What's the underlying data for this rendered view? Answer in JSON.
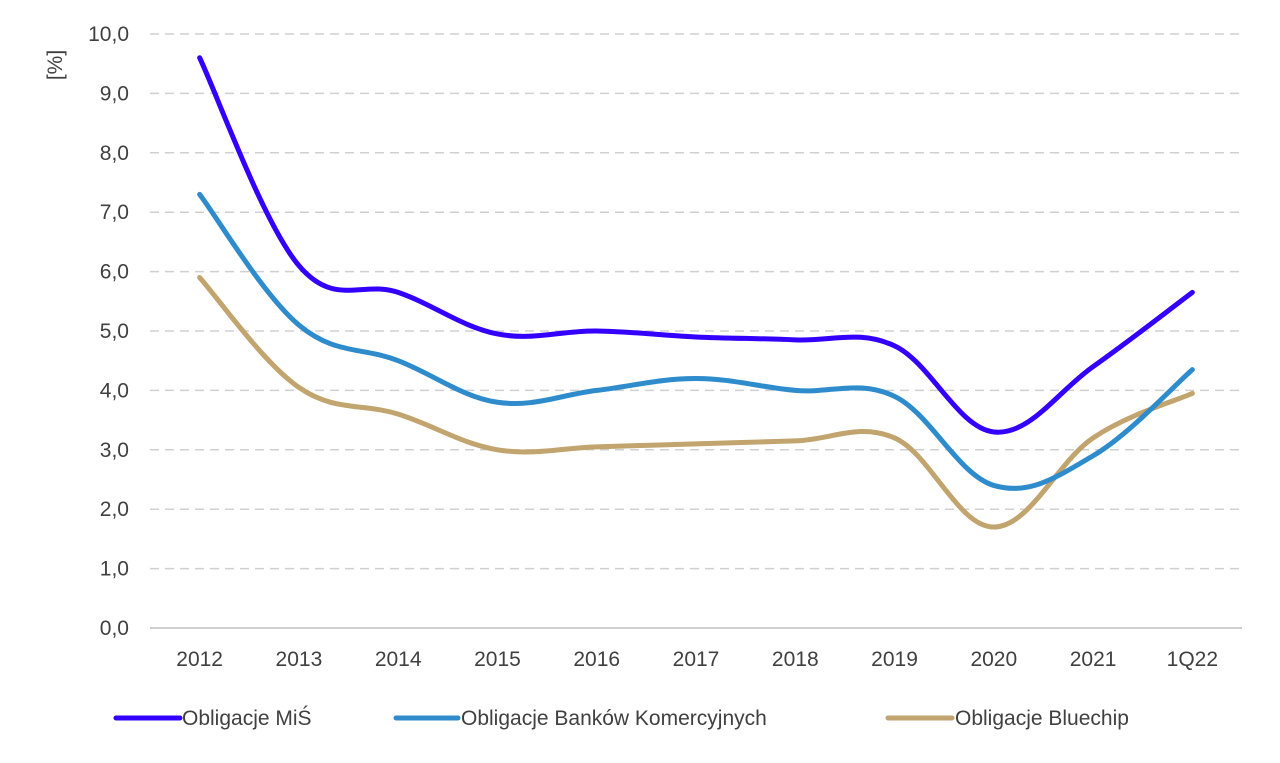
{
  "chart_data": {
    "type": "line",
    "ylabel": "[%]",
    "xlabel": "",
    "title": "",
    "categories": [
      "2012",
      "2013",
      "2014",
      "2015",
      "2016",
      "2017",
      "2018",
      "2019",
      "2020",
      "2021",
      "1Q22"
    ],
    "ylim": [
      0,
      10
    ],
    "yticks": [
      "0,0",
      "1,0",
      "2,0",
      "3,0",
      "4,0",
      "5,0",
      "6,0",
      "7,0",
      "8,0",
      "9,0",
      "10,0"
    ],
    "grid": true,
    "legend_position": "bottom",
    "series": [
      {
        "name": "Obligacje MiŚ",
        "color": "#3300ff",
        "values": [
          9.6,
          6.1,
          5.65,
          4.95,
          5.0,
          4.9,
          4.85,
          4.75,
          3.3,
          4.4,
          5.65
        ]
      },
      {
        "name": "Obligacje Banków Komercyjnych",
        "color": "#2e8bcc",
        "values": [
          7.3,
          5.1,
          4.5,
          3.8,
          4.0,
          4.2,
          4.0,
          3.9,
          2.4,
          2.9,
          4.35
        ]
      },
      {
        "name": "Obligacje Bluechip",
        "color": "#c2a46e",
        "values": [
          5.9,
          4.05,
          3.6,
          3.0,
          3.05,
          3.1,
          3.15,
          3.2,
          1.7,
          3.2,
          3.95
        ]
      }
    ]
  }
}
